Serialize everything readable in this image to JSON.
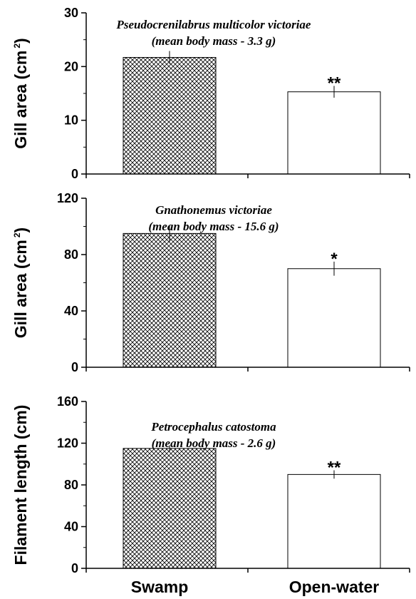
{
  "chart_data": [
    {
      "type": "bar",
      "categories": [
        "Swamp",
        "Open-water"
      ],
      "values": [
        21.7,
        15.3
      ],
      "errors": [
        1.2,
        1.1
      ],
      "significance": [
        "",
        "**"
      ],
      "annotation": [
        "Pseudocrenilabrus multicolor victoriae",
        "(mean body mass - 3.3 g)"
      ],
      "ylabel": "Gill area (cm",
      "ylabel_sup": "2",
      "ylabel_close": ")",
      "ylim": [
        0,
        30
      ],
      "yticks": [
        0,
        10,
        20,
        30
      ],
      "show_xlabels": false
    },
    {
      "type": "bar",
      "categories": [
        "Swamp",
        "Open-water"
      ],
      "values": [
        95,
        70
      ],
      "errors": [
        6,
        5
      ],
      "significance": [
        "",
        "*"
      ],
      "annotation": [
        "Gnathonemus victoriae",
        "(mean body mass - 15.6 g)"
      ],
      "ylabel": "Gill area (cm",
      "ylabel_sup": "2",
      "ylabel_close": ")",
      "ylim": [
        0,
        120
      ],
      "yticks": [
        0,
        40,
        80,
        120
      ],
      "show_xlabels": false
    },
    {
      "type": "bar",
      "categories": [
        "Swamp",
        "Open-water"
      ],
      "values": [
        115,
        90
      ],
      "errors": [
        3,
        4
      ],
      "significance": [
        "",
        "**"
      ],
      "annotation": [
        "Petrocephalus catostoma",
        "(mean body mass - 2.6 g)"
      ],
      "ylabel": "Filament length (cm)",
      "ylabel_sup": "",
      "ylabel_close": "",
      "ylim": [
        0,
        160
      ],
      "yticks": [
        0,
        40,
        80,
        120,
        160
      ],
      "show_xlabels": true
    }
  ]
}
